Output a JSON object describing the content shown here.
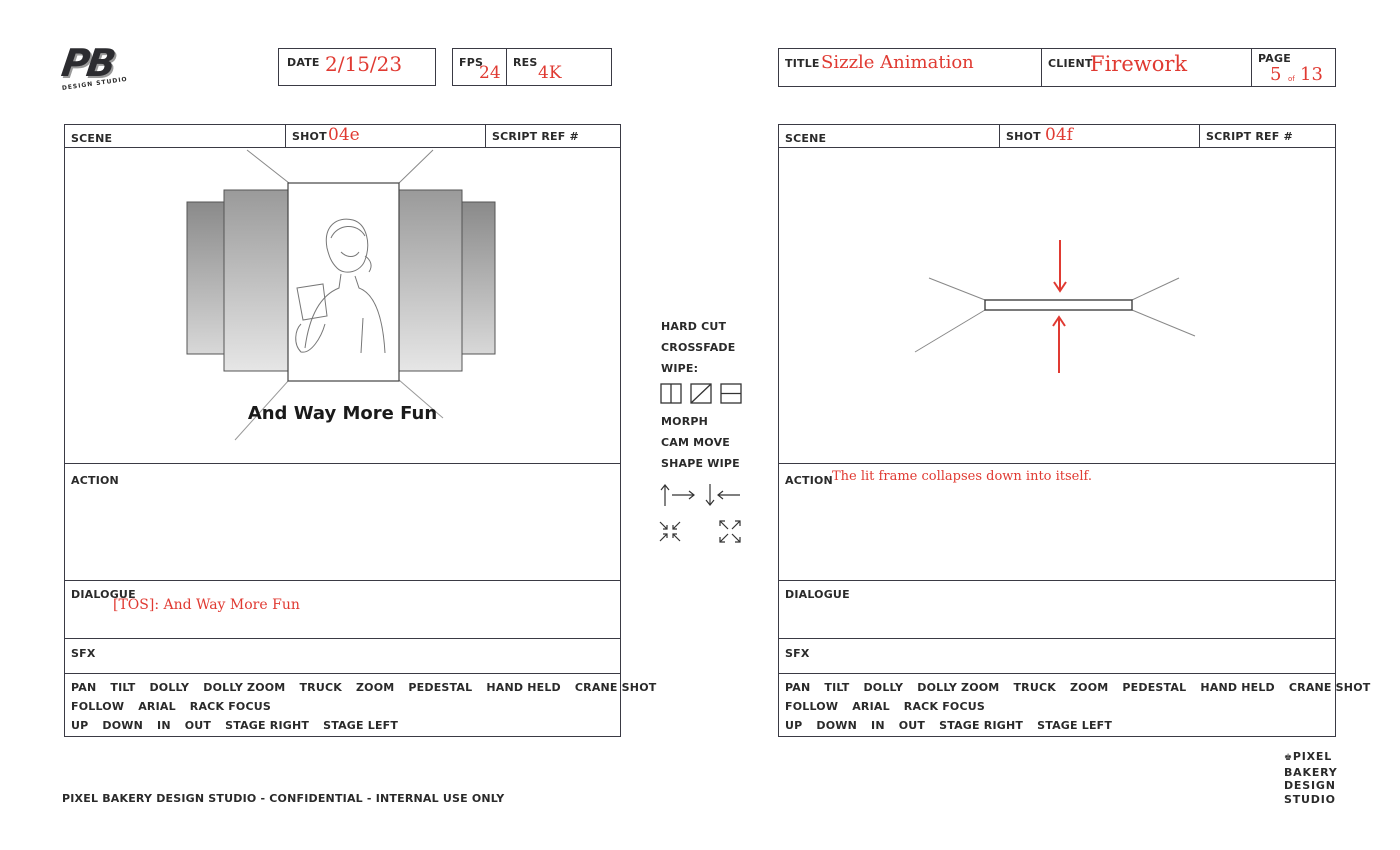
{
  "logo": {
    "mark": "PB",
    "sub": "DESIGN STUDIO"
  },
  "header": {
    "date_label": "DATE",
    "date_value": "2/15/23",
    "fps_label": "FPS",
    "fps_value": "24",
    "res_label": "RES",
    "res_value": "4K",
    "title_label": "TITLE",
    "title_value": "Sizzle Animation",
    "client_label": "CLIENT",
    "client_value": "Firework",
    "page_label": "PAGE",
    "page_current": "5",
    "page_of": "of",
    "page_total": "13"
  },
  "panels": [
    {
      "scene_label": "SCENE",
      "shot_label": "SHOT",
      "shot_value": "04e",
      "script_ref_label": "SCRIPT REF #",
      "frame_caption": "And Way More Fun",
      "action_label": "ACTION",
      "action_value": "",
      "dialogue_label": "DIALOGUE",
      "dialogue_value": "[TOS]: And Way More Fun",
      "sfx_label": "SFX"
    },
    {
      "scene_label": "SCENE",
      "shot_label": "SHOT",
      "shot_value": "04f",
      "script_ref_label": "SCRIPT REF #",
      "action_label": "ACTION",
      "action_value": "The lit frame collapses down into itself.",
      "dialogue_label": "DIALOGUE",
      "dialogue_value": "",
      "sfx_label": "SFX"
    }
  ],
  "camera": {
    "row1": [
      "PAN",
      "TILT",
      "DOLLY",
      "DOLLY ZOOM",
      "TRUCK",
      "ZOOM",
      "PEDESTAL",
      "HAND HELD",
      "CRANE SHOT"
    ],
    "row2": [
      "FOLLOW",
      "ARIAL",
      "RACK FOCUS"
    ],
    "row3": [
      "UP",
      "DOWN",
      "IN",
      "OUT",
      "STAGE RIGHT",
      "STAGE LEFT"
    ]
  },
  "transitions": {
    "items_top": [
      "HARD CUT",
      "CROSSFADE",
      "WIPE:"
    ],
    "items_bottom": [
      "MORPH",
      "CAM MOVE",
      "SHAPE WIPE"
    ],
    "icons": [
      "wipe-vertical-icon",
      "wipe-diagonal-icon",
      "wipe-horizontal-icon",
      "up-right-arrows-icon",
      "down-left-arrows-icon",
      "collapse-icon",
      "expand-icon"
    ]
  },
  "footer": {
    "confidential": "PIXEL BAKERY DESIGN STUDIO - CONFIDENTIAL - INTERNAL USE ONLY",
    "brand_lines": [
      "PIXEL",
      "BAKERY",
      "DESIGN",
      "STUDIO"
    ]
  },
  "colors": {
    "ink": "#3a3a44",
    "hand": "#e03a32"
  }
}
